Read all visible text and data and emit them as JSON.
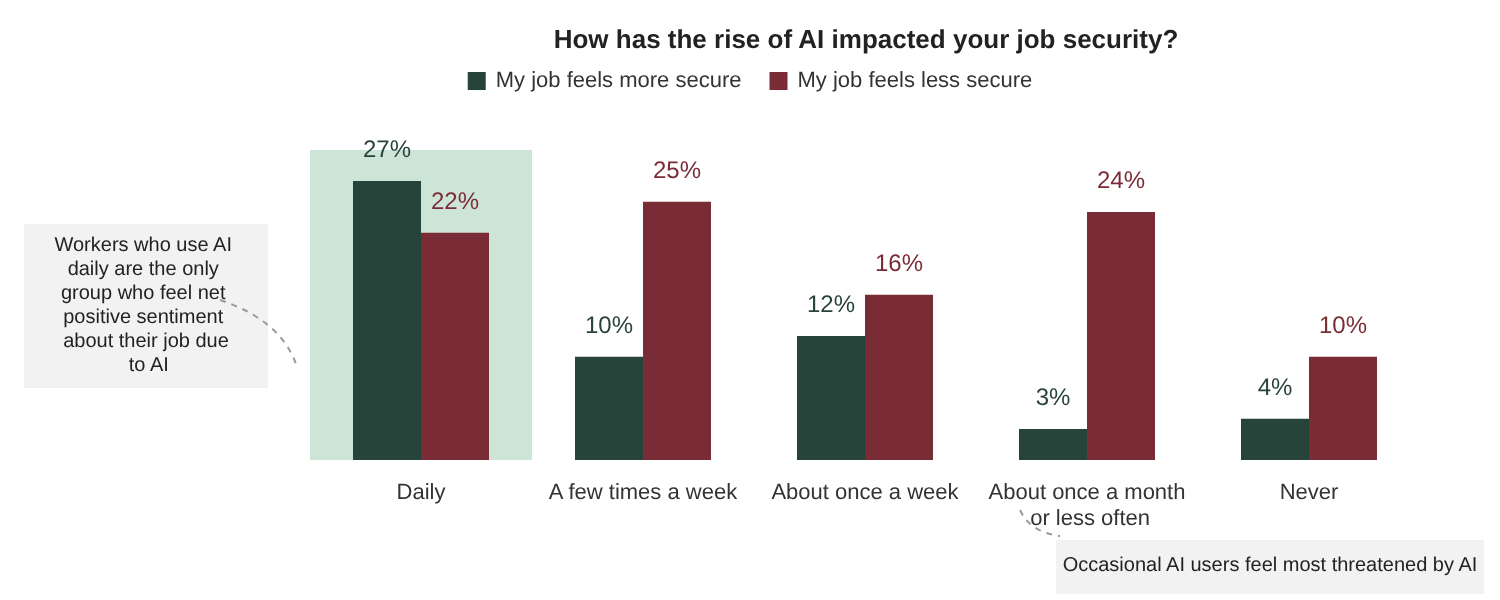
{
  "chart_data": {
    "type": "bar",
    "title": "How has the rise of AI impacted your job security?",
    "categories": [
      "Daily",
      "A few times a week",
      "About once a week",
      "About once a month or less often",
      "Never"
    ],
    "series": [
      {
        "name": "My job feels more secure",
        "color": "#27443a",
        "values": [
          27,
          10,
          12,
          3,
          4
        ],
        "value_labels": [
          "27%",
          "10%",
          "12%",
          "3%",
          "4%"
        ]
      },
      {
        "name": "My job feels less secure",
        "color": "#7a2c36",
        "values": [
          22,
          25,
          16,
          24,
          10
        ],
        "value_labels": [
          "22%",
          "25%",
          "16%",
          "24%",
          "10%"
        ]
      }
    ],
    "legend": "top",
    "grid": false,
    "bands": [
      {
        "axis": "x",
        "from": "Daily",
        "to": "Daily",
        "color": "#cde5d6"
      }
    ],
    "annotations": [
      "Workers who use AI daily are the only group who feel net positive sentiment about their job due to AI",
      "Occasional AI users feel most threatened by AI"
    ]
  }
}
